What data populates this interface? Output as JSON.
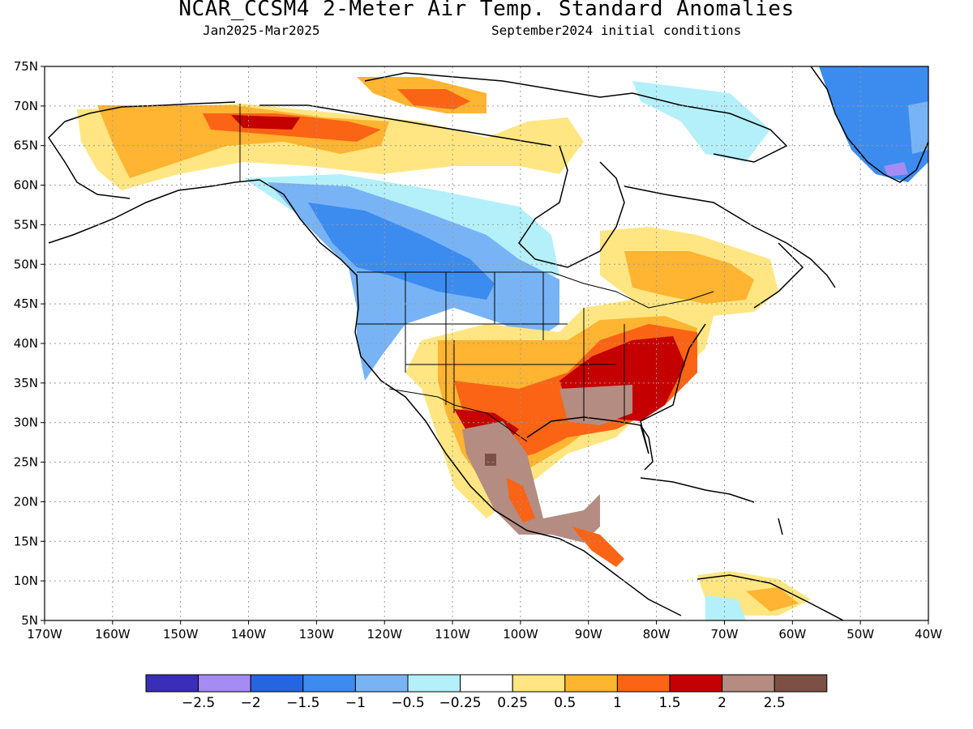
{
  "header": {
    "title": "NCAR_CCSM4 2-Meter Air Temp. Standard Anomalies",
    "period": "Jan2025-Mar2025",
    "conditions": "September2024 initial conditions"
  },
  "map": {
    "lat_ticks": [
      "75N",
      "70N",
      "65N",
      "60N",
      "55N",
      "50N",
      "45N",
      "40N",
      "35N",
      "30N",
      "25N",
      "20N",
      "15N",
      "10N",
      "5N"
    ],
    "lon_ticks": [
      "170W",
      "160W",
      "150W",
      "140W",
      "130W",
      "120W",
      "110W",
      "100W",
      "90W",
      "80W",
      "70W",
      "60W",
      "50W",
      "40W"
    ],
    "lon_range": [
      -170,
      -40
    ],
    "lat_range": [
      5,
      75
    ],
    "gridlines": "dotted"
  },
  "colorbar": {
    "colors": [
      "#3a2db8",
      "#a58cf5",
      "#2466e0",
      "#3c8cf0",
      "#78b4f5",
      "#b4f0fa",
      "#ffffff",
      "#ffe682",
      "#ffb432",
      "#fa6414",
      "#c40000",
      "#b48c82",
      "#7d5046"
    ],
    "labels": [
      "-2.5",
      "-2",
      "-1.5",
      "-1",
      "-0.5",
      "-0.25",
      "0.25",
      "0.5",
      "1",
      "1.5",
      "2",
      "2.5"
    ]
  }
}
